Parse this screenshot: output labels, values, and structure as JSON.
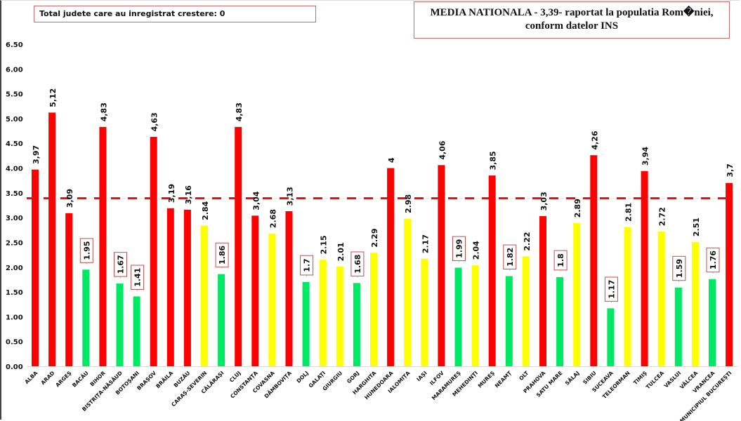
{
  "header": {
    "counter_label": "Total judete care au inregistrat crestere: 0",
    "national_title_line1": "MEDIA NATIONALA - 3,39-  raportat la populatia Rom�niei,",
    "national_title_line2": "conform datelor INS"
  },
  "colors": {
    "red": "#ff0000",
    "yellow": "#ffff00",
    "green": "#00e964",
    "mean_line": "#e01010",
    "label_box_border": "#c0504d"
  },
  "chart_data": {
    "type": "bar",
    "title": "MEDIA NATIONALA - 3,39-  raportat la populatia Rom�niei, conform datelor INS",
    "xlabel": "",
    "ylabel": "",
    "ylim": [
      0,
      6.5
    ],
    "yticks": [
      "0.00",
      "0.50",
      "1.00",
      "1.50",
      "2.00",
      "2.50",
      "3.00",
      "3.50",
      "4.00",
      "4.50",
      "5.00",
      "5.50",
      "6.00",
      "6.50"
    ],
    "grid": false,
    "reference_line": {
      "value": 3.39,
      "style": "dashed"
    },
    "categories": [
      "ALBA",
      "ARAD",
      "ARGEȘ",
      "BACĂU",
      "BIHOR",
      "BISTRIȚA-NĂSĂUD",
      "BOTOȘANI",
      "BRAȘOV",
      "BRĂILA",
      "BUZĂU",
      "CARAȘ-SEVERIN",
      "CĂLĂRAȘI",
      "CLUJ",
      "CONSTANȚA",
      "COVASNA",
      "DÂMBOVIȚA",
      "DOLJ",
      "GALAȚI",
      "GIURGIU",
      "GORJ",
      "HARGHITA",
      "HUNEDOARA",
      "IALOMIȚA",
      "IAȘI",
      "ILFOV",
      "MARAMUREȘ",
      "MEHEDINȚI",
      "MUREȘ",
      "NEAMȚ",
      "OLT",
      "PRAHOVA",
      "SATU MARE",
      "SĂLAJ",
      "SIBIU",
      "SUCEAVA",
      "TELEORMAN",
      "TIMIȘ",
      "TULCEA",
      "VASLUI",
      "VÂLCEA",
      "VRANCEA",
      "MUNICIPIUL BUCUREȘTI"
    ],
    "values": [
      3.97,
      5.12,
      3.09,
      1.95,
      4.83,
      1.67,
      1.41,
      4.63,
      3.19,
      3.16,
      2.84,
      1.86,
      4.83,
      3.04,
      2.68,
      3.13,
      1.7,
      2.15,
      2.01,
      1.68,
      2.29,
      4,
      2.98,
      2.17,
      4.06,
      1.99,
      2.04,
      3.85,
      1.82,
      2.22,
      3.03,
      1.8,
      2.89,
      4.26,
      1.17,
      2.81,
      3.94,
      2.72,
      1.59,
      2.51,
      1.76,
      3.7
    ],
    "labels": [
      "3,97",
      "5,12",
      "3,09",
      "1.95",
      "4,83",
      "1.67",
      "1.41",
      "4,63",
      "3,19",
      "3,16",
      "2.84",
      "1.86",
      "4,83",
      "3,04",
      "2.68",
      "3,13",
      "1.7",
      "2.15",
      "2.01",
      "1.68",
      "2.29",
      "4",
      "2.98",
      "2.17",
      "4,06",
      "1.99",
      "2.04",
      "3,85",
      "1.82",
      "2.22",
      "3,03",
      "1.8",
      "2.89",
      "4,26",
      "1.17",
      "2.81",
      "3,94",
      "2.72",
      "1.59",
      "2.51",
      "1.76",
      "3,7"
    ],
    "bar_colors": [
      "red",
      "red",
      "red",
      "green",
      "red",
      "green",
      "green",
      "red",
      "red",
      "red",
      "yellow",
      "green",
      "red",
      "red",
      "yellow",
      "red",
      "green",
      "yellow",
      "yellow",
      "green",
      "yellow",
      "red",
      "yellow",
      "yellow",
      "red",
      "green",
      "yellow",
      "red",
      "green",
      "yellow",
      "red",
      "green",
      "yellow",
      "red",
      "green",
      "yellow",
      "red",
      "yellow",
      "green",
      "yellow",
      "green",
      "red"
    ],
    "boxed_labels": [
      false,
      false,
      false,
      true,
      false,
      true,
      true,
      false,
      false,
      false,
      false,
      true,
      false,
      false,
      false,
      false,
      true,
      false,
      false,
      true,
      false,
      false,
      false,
      false,
      false,
      true,
      false,
      false,
      true,
      false,
      false,
      true,
      false,
      false,
      true,
      false,
      false,
      false,
      true,
      false,
      true,
      false
    ]
  }
}
